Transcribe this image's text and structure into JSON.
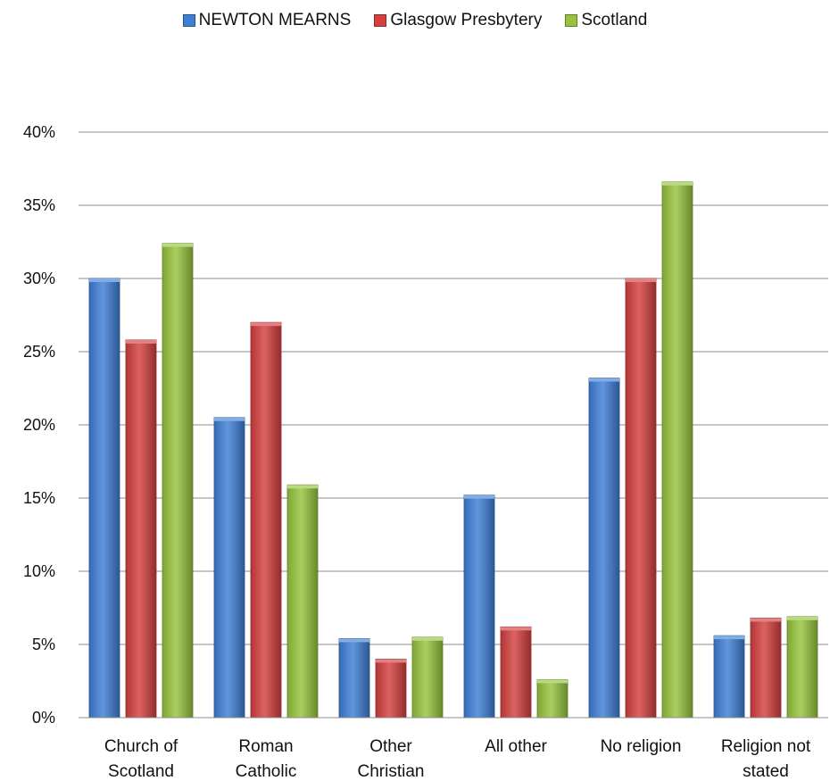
{
  "chart_data": {
    "type": "bar",
    "categories": [
      [
        "Church of",
        "Scotland"
      ],
      [
        "Roman",
        "Catholic"
      ],
      [
        "Other",
        "Christian"
      ],
      [
        "All other"
      ],
      [
        "No religion"
      ],
      [
        "Religion not",
        "stated"
      ]
    ],
    "series": [
      {
        "name": "NEWTON MEARNS",
        "color": "#3e7fd6",
        "values": [
          30.0,
          20.5,
          5.4,
          15.2,
          23.2,
          5.6
        ]
      },
      {
        "name": "Glasgow Presbytery",
        "color": "#d43f3f",
        "values": [
          25.8,
          27.0,
          4.0,
          6.2,
          30.0,
          6.8
        ]
      },
      {
        "name": "Scotland",
        "color": "#96c43e",
        "values": [
          32.4,
          15.9,
          5.5,
          2.6,
          36.6,
          6.9
        ]
      }
    ],
    "ylim": [
      0,
      40
    ],
    "yticks": [
      "0%",
      "5%",
      "10%",
      "15%",
      "20%",
      "25%",
      "30%",
      "35%",
      "40%"
    ],
    "grid": true,
    "legend_position": "top-center"
  }
}
